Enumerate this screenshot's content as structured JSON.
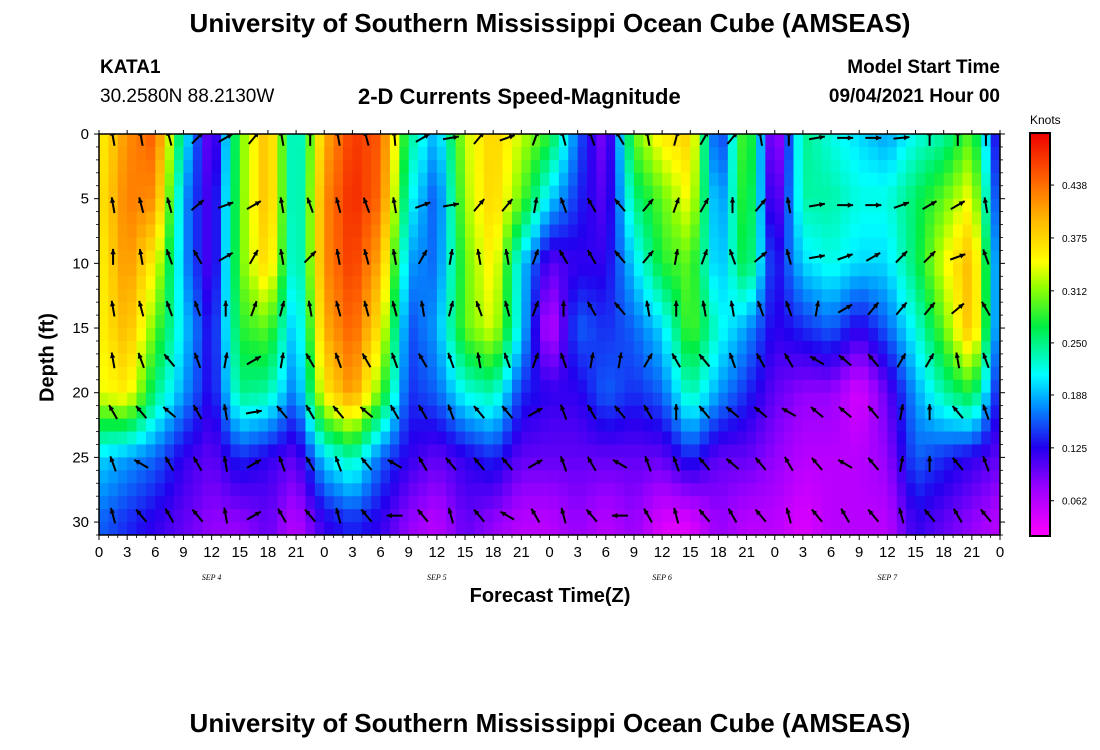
{
  "header": {
    "title": "University of Southern Mississippi Ocean Cube (AMSEAS)",
    "station": "KATA1",
    "coords": "30.2580N  88.2130W",
    "subtitle": "2-D Currents Speed-Magnitude",
    "model_start_label": "Model Start Time",
    "model_start_value": "09/04/2021 Hour 00"
  },
  "footer": {
    "title": "University of Southern Mississippi Ocean Cube (AMSEAS)"
  },
  "chart_data": {
    "type": "heatmap",
    "title": "2-D Currents Speed-Magnitude",
    "xlabel": "Forecast Time(Z)",
    "ylabel": "Depth (ft)",
    "x_unit": "hours since 09/04/2021 00Z",
    "xlim": [
      0,
      96
    ],
    "ylim": [
      0,
      31
    ],
    "y_inverted": true,
    "x_ticks": [
      "0",
      "3",
      "6",
      "9",
      "12",
      "15",
      "18",
      "21",
      "0",
      "3",
      "6",
      "9",
      "12",
      "15",
      "18",
      "21",
      "0",
      "3",
      "6",
      "9",
      "12",
      "15",
      "18",
      "21",
      "0",
      "3",
      "6",
      "9",
      "12",
      "15",
      "18",
      "21",
      "0"
    ],
    "y_ticks": [
      "0",
      "5",
      "10",
      "15",
      "20",
      "25",
      "30"
    ],
    "y_tick_values": [
      0,
      5,
      10,
      15,
      20,
      25,
      30
    ],
    "date_labels": [
      {
        "label": "SEP 4",
        "hour": 12
      },
      {
        "label": "SEP 5",
        "hour": 36
      },
      {
        "label": "SEP 6",
        "hour": 60
      },
      {
        "label": "SEP 7",
        "hour": 84
      }
    ],
    "colorbar": {
      "units": "Knots",
      "min": 0.02,
      "max": 0.5,
      "ticks": [
        "0.438",
        "0.375",
        "0.312",
        "0.250",
        "0.188",
        "0.125",
        "0.062"
      ],
      "tick_values": [
        0.438,
        0.375,
        0.312,
        0.25,
        0.188,
        0.125,
        0.062
      ]
    },
    "speed_time_hours": [
      0,
      3,
      6,
      9,
      12,
      15,
      18,
      21,
      24,
      27,
      30,
      33,
      36,
      39,
      42,
      45,
      48,
      51,
      54,
      57,
      60,
      63,
      66,
      69,
      72,
      75,
      78,
      81,
      84,
      87,
      90,
      93,
      96
    ],
    "speed_depths_ft": [
      0,
      5,
      10,
      15,
      20,
      25,
      30
    ],
    "speed_grid_knots": [
      [
        0.35,
        0.42,
        0.45,
        0.22,
        0.08,
        0.3,
        0.4,
        0.2,
        0.4,
        0.47,
        0.45,
        0.25,
        0.18,
        0.33,
        0.38,
        0.33,
        0.28,
        0.16,
        0.08,
        0.3,
        0.36,
        0.38,
        0.12,
        0.32,
        0.05,
        0.25,
        0.22,
        0.2,
        0.18,
        0.22,
        0.24,
        0.3,
        0.1
      ],
      [
        0.36,
        0.43,
        0.42,
        0.18,
        0.1,
        0.3,
        0.4,
        0.2,
        0.42,
        0.48,
        0.44,
        0.22,
        0.15,
        0.32,
        0.38,
        0.3,
        0.2,
        0.14,
        0.1,
        0.25,
        0.3,
        0.35,
        0.16,
        0.3,
        0.08,
        0.24,
        0.24,
        0.22,
        0.22,
        0.26,
        0.3,
        0.35,
        0.12
      ],
      [
        0.35,
        0.42,
        0.35,
        0.18,
        0.1,
        0.3,
        0.38,
        0.2,
        0.42,
        0.47,
        0.4,
        0.18,
        0.16,
        0.3,
        0.36,
        0.2,
        0.1,
        0.12,
        0.12,
        0.2,
        0.28,
        0.3,
        0.18,
        0.28,
        0.12,
        0.2,
        0.22,
        0.2,
        0.2,
        0.26,
        0.34,
        0.4,
        0.14
      ],
      [
        0.35,
        0.4,
        0.3,
        0.2,
        0.12,
        0.28,
        0.3,
        0.18,
        0.4,
        0.45,
        0.36,
        0.15,
        0.18,
        0.3,
        0.34,
        0.2,
        0.05,
        0.16,
        0.14,
        0.16,
        0.2,
        0.3,
        0.22,
        0.18,
        0.12,
        0.14,
        0.16,
        0.12,
        0.16,
        0.22,
        0.3,
        0.4,
        0.14
      ],
      [
        0.34,
        0.36,
        0.25,
        0.18,
        0.12,
        0.25,
        0.24,
        0.16,
        0.36,
        0.42,
        0.3,
        0.14,
        0.16,
        0.22,
        0.24,
        0.14,
        0.12,
        0.12,
        0.16,
        0.14,
        0.16,
        0.24,
        0.18,
        0.14,
        0.1,
        0.08,
        0.08,
        0.04,
        0.1,
        0.18,
        0.24,
        0.28,
        0.12
      ],
      [
        0.2,
        0.18,
        0.16,
        0.12,
        0.1,
        0.14,
        0.12,
        0.1,
        0.2,
        0.24,
        0.16,
        0.12,
        0.1,
        0.12,
        0.14,
        0.1,
        0.1,
        0.1,
        0.1,
        0.1,
        0.1,
        0.14,
        0.1,
        0.1,
        0.08,
        0.06,
        0.06,
        0.06,
        0.08,
        0.16,
        0.14,
        0.12,
        0.1
      ],
      [
        0.16,
        0.14,
        0.12,
        0.1,
        0.08,
        0.08,
        0.1,
        0.06,
        0.12,
        0.14,
        0.12,
        0.08,
        0.06,
        0.1,
        0.08,
        0.06,
        0.06,
        0.08,
        0.06,
        0.08,
        0.04,
        0.04,
        0.08,
        0.06,
        0.06,
        0.04,
        0.06,
        0.06,
        0.06,
        0.12,
        0.1,
        0.08,
        0.06
      ]
    ],
    "direction_vector_angles_deg": {
      "note": "compass direction current flows toward, per time column, depth rows 0,4,8,12,16,20,24,28 ft",
      "rows": [
        [
          350,
          350,
          345,
          45,
          60,
          40,
          350,
          0,
          350,
          345,
          355,
          60,
          80,
          40,
          70,
          20,
          345,
          340,
          330,
          350,
          15,
          30,
          40,
          350,
          0,
          80,
          90,
          90,
          85,
          0,
          0,
          0,
          0
        ],
        [
          350,
          345,
          345,
          50,
          70,
          60,
          350,
          340,
          345,
          340,
          350,
          70,
          80,
          40,
          40,
          10,
          340,
          330,
          320,
          40,
          20,
          30,
          0,
          40,
          350,
          80,
          90,
          90,
          70,
          60,
          60,
          350,
          0
        ],
        [
          0,
          350,
          340,
          330,
          60,
          30,
          350,
          45,
          350,
          345,
          350,
          30,
          10,
          350,
          350,
          20,
          330,
          330,
          320,
          40,
          10,
          20,
          340,
          50,
          345,
          80,
          70,
          60,
          45,
          45,
          70,
          340,
          0
        ],
        [
          350,
          345,
          340,
          340,
          0,
          20,
          15,
          350,
          345,
          345,
          345,
          350,
          15,
          340,
          345,
          20,
          0,
          330,
          320,
          350,
          0,
          350,
          350,
          340,
          340,
          10,
          60,
          40,
          40,
          40,
          50,
          330,
          0
        ],
        [
          350,
          340,
          320,
          340,
          10,
          60,
          10,
          330,
          340,
          330,
          340,
          330,
          340,
          350,
          340,
          20,
          340,
          10,
          10,
          30,
          330,
          320,
          340,
          330,
          330,
          300,
          310,
          320,
          30,
          30,
          350,
          340,
          0
        ],
        [
          330,
          320,
          310,
          330,
          350,
          80,
          320,
          330,
          320,
          310,
          330,
          330,
          340,
          320,
          320,
          60,
          340,
          330,
          320,
          330,
          0,
          320,
          310,
          310,
          300,
          310,
          310,
          320,
          10,
          0,
          320,
          340,
          0
        ],
        [
          340,
          300,
          330,
          330,
          350,
          60,
          340,
          330,
          340,
          320,
          300,
          330,
          320,
          320,
          320,
          60,
          340,
          330,
          300,
          340,
          340,
          320,
          310,
          320,
          330,
          320,
          300,
          320,
          10,
          0,
          320,
          340,
          0
        ],
        [
          345,
          320,
          330,
          320,
          350,
          60,
          330,
          320,
          345,
          320,
          270,
          320,
          345,
          320,
          300,
          330,
          345,
          320,
          270,
          330,
          345,
          320,
          330,
          320,
          345,
          320,
          330,
          320,
          345,
          320,
          330,
          320,
          0
        ]
      ]
    }
  }
}
